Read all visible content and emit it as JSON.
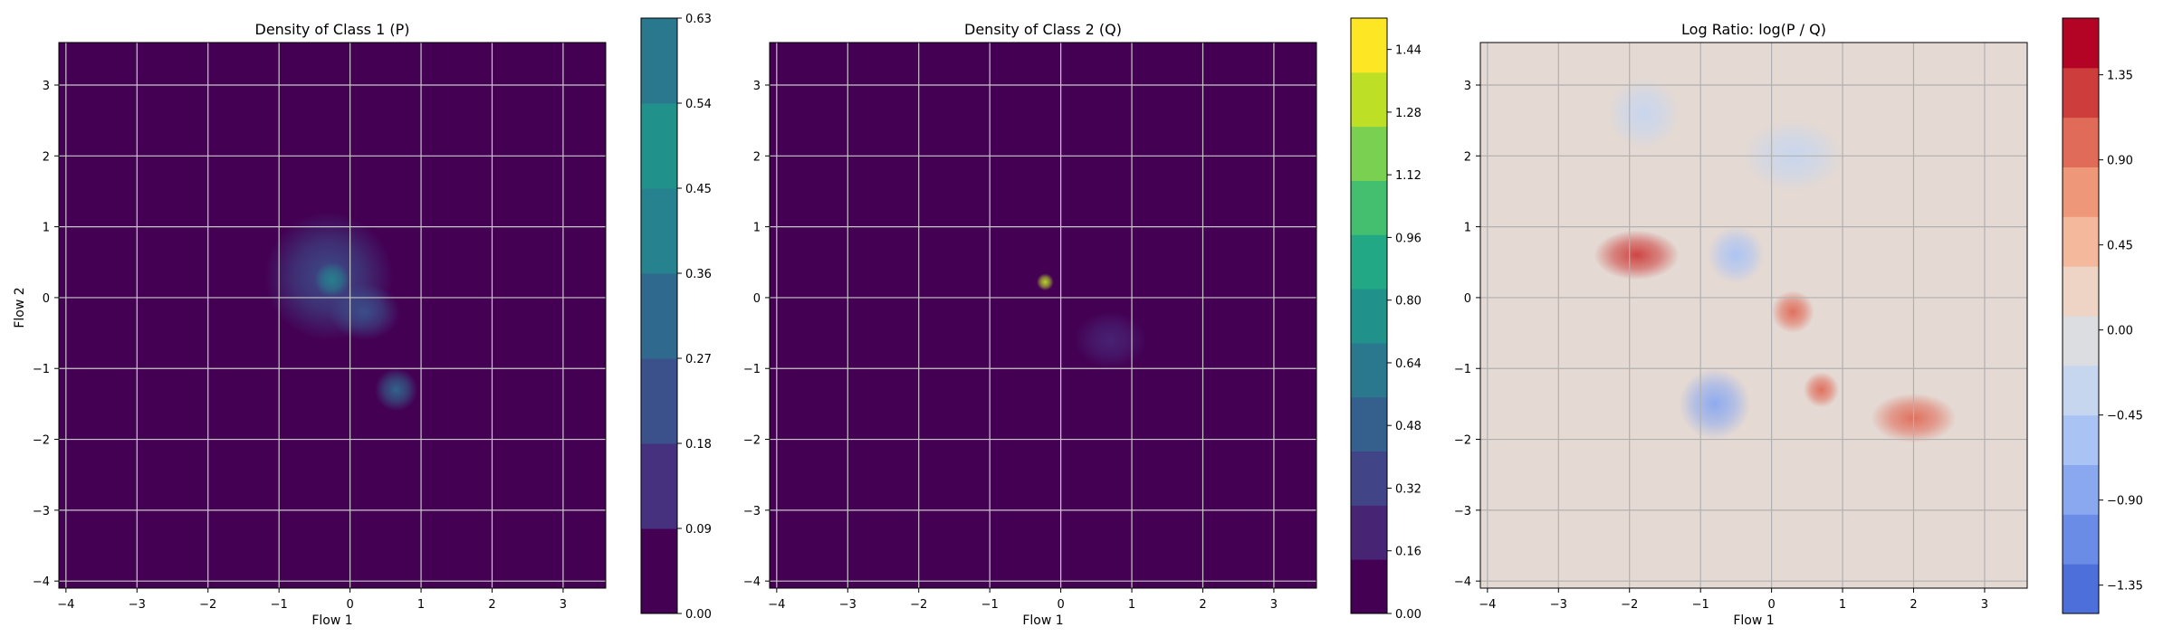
{
  "chart_data": [
    {
      "type": "heatmap",
      "title": "Density of Class 1 (P)",
      "xlabel": "Flow 1",
      "ylabel": "Flow 2",
      "xlim": [
        -4.1,
        3.6
      ],
      "ylim": [
        -4.1,
        3.6
      ],
      "xticks": [
        -4,
        -3,
        -2,
        -1,
        0,
        1,
        2,
        3
      ],
      "yticks": [
        -4,
        -3,
        -2,
        -1,
        0,
        1,
        2,
        3
      ],
      "grid": true,
      "colormap": "viridis",
      "background_color": "#440154",
      "colorbar": {
        "min": 0.0,
        "max": 0.63,
        "ticks": [
          "0.00",
          "0.09",
          "0.18",
          "0.27",
          "0.36",
          "0.45",
          "0.54",
          "0.63"
        ],
        "colors": [
          "#440154",
          "#46317e",
          "#3b518b",
          "#30698e",
          "#26828e",
          "#21918c",
          "#2a788e"
        ]
      },
      "hotspots": [
        {
          "x": -0.3,
          "y": 0.3,
          "sx": 0.9,
          "sy": 0.9,
          "level": 0.18
        },
        {
          "x": -0.25,
          "y": 0.25,
          "sx": 0.25,
          "sy": 0.25,
          "level": 0.36
        },
        {
          "x": 0.2,
          "y": -0.2,
          "sx": 0.5,
          "sy": 0.4,
          "level": 0.2
        },
        {
          "x": 0.65,
          "y": -1.3,
          "sx": 0.3,
          "sy": 0.3,
          "level": 0.3
        },
        {
          "x": 0.0,
          "y": -0.2,
          "sx": 1.7,
          "sy": 1.5,
          "level": 0.06
        }
      ]
    },
    {
      "type": "heatmap",
      "title": "Density of Class 2 (Q)",
      "xlabel": "Flow 1",
      "ylabel": "",
      "xlim": [
        -4.1,
        3.6
      ],
      "ylim": [
        -4.1,
        3.6
      ],
      "xticks": [
        -4,
        -3,
        -2,
        -1,
        0,
        1,
        2,
        3
      ],
      "yticks": [
        -4,
        -3,
        -2,
        -1,
        0,
        1,
        2,
        3
      ],
      "grid": true,
      "colormap": "viridis",
      "background_color": "#440154",
      "colorbar": {
        "min": 0.0,
        "max": 1.52,
        "ticks": [
          "0.00",
          "0.16",
          "0.32",
          "0.48",
          "0.64",
          "0.80",
          "0.96",
          "1.12",
          "1.28",
          "1.44"
        ],
        "colors": [
          "#440154",
          "#482475",
          "#414487",
          "#355f8d",
          "#2a788e",
          "#21918c",
          "#22a884",
          "#44bf70",
          "#7ad151",
          "#bddf26",
          "#fde725"
        ]
      },
      "hotspots": [
        {
          "x": -0.3,
          "y": 0.2,
          "sx": 0.9,
          "sy": 0.9,
          "level": 0.12
        },
        {
          "x": -0.22,
          "y": 0.22,
          "sx": 0.12,
          "sy": 0.12,
          "level": 1.3
        },
        {
          "x": 0.7,
          "y": -0.6,
          "sx": 0.5,
          "sy": 0.4,
          "level": 0.2
        },
        {
          "x": 0.0,
          "y": -0.3,
          "sx": 1.0,
          "sy": 0.9,
          "level": 0.06
        }
      ]
    },
    {
      "type": "heatmap",
      "title": "Log Ratio: log(P / Q)",
      "xlabel": "Flow 1",
      "ylabel": "",
      "xlim": [
        -4.1,
        3.6
      ],
      "ylim": [
        -4.1,
        3.6
      ],
      "xticks": [
        -4,
        -3,
        -2,
        -1,
        0,
        1,
        2,
        3
      ],
      "yticks": [
        -4,
        -3,
        -2,
        -1,
        0,
        1,
        2,
        3
      ],
      "grid": true,
      "colormap": "coolwarm",
      "background_color": "#e4d9d3",
      "colorbar": {
        "min": -1.5,
        "max": 1.65,
        "ticks": [
          "-1.35",
          "-0.90",
          "-0.45",
          "0.00",
          "0.45",
          "0.90",
          "1.35"
        ],
        "tick_values": [
          -1.35,
          -0.9,
          -0.45,
          0.0,
          0.45,
          0.9,
          1.35
        ],
        "colors": [
          "#4d6fd9",
          "#6a8be6",
          "#8aa8f0",
          "#aac3f5",
          "#c7d6ef",
          "#dcdde1",
          "#eed4c5",
          "#f4b89c",
          "#ef9879",
          "#e06b58",
          "#cd3d3b",
          "#b40426"
        ]
      },
      "hotspots": [
        {
          "x": -1.9,
          "y": 0.6,
          "sx": 0.6,
          "sy": 0.35,
          "level": 1.2
        },
        {
          "x": 0.3,
          "y": -0.2,
          "sx": 0.3,
          "sy": 0.3,
          "level": 1.0
        },
        {
          "x": 0.7,
          "y": -1.3,
          "sx": 0.25,
          "sy": 0.25,
          "level": 0.9
        },
        {
          "x": 2.0,
          "y": -1.7,
          "sx": 0.6,
          "sy": 0.35,
          "level": 0.9
        },
        {
          "x": -0.8,
          "y": -1.5,
          "sx": 0.5,
          "sy": 0.5,
          "level": -0.8
        },
        {
          "x": -0.5,
          "y": 0.6,
          "sx": 0.4,
          "sy": 0.4,
          "level": -0.7
        },
        {
          "x": -1.8,
          "y": 2.6,
          "sx": 0.5,
          "sy": 0.5,
          "level": -0.45
        },
        {
          "x": 0.3,
          "y": 2.0,
          "sx": 0.7,
          "sy": 0.5,
          "level": -0.45
        }
      ]
    }
  ]
}
